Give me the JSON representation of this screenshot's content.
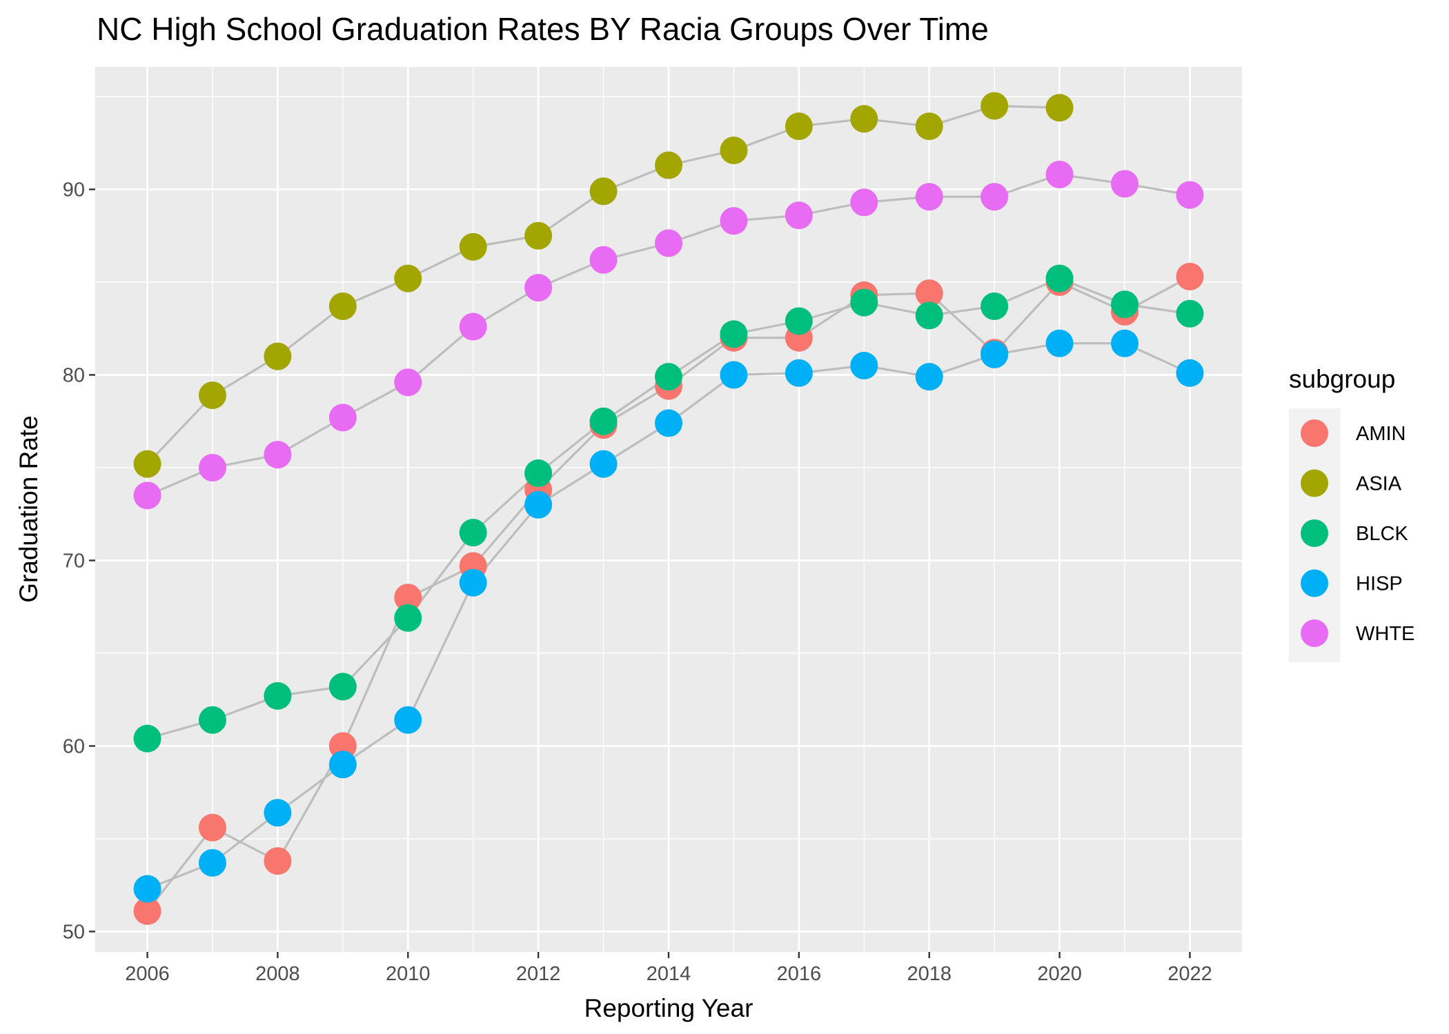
{
  "chart_data": {
    "type": "scatter",
    "title": "NC High School Graduation Rates BY Racia Groups Over Time",
    "xlabel": "Reporting Year",
    "ylabel": "Graduation Rate",
    "xlim": [
      2005.2,
      2022.8
    ],
    "ylim": [
      48.9,
      96.6
    ],
    "x_ticks": [
      2006,
      2008,
      2010,
      2012,
      2014,
      2016,
      2018,
      2020,
      2022
    ],
    "y_ticks": [
      50,
      60,
      70,
      80,
      90
    ],
    "grid": true,
    "line_color": "#bdbdbd",
    "panel_background": "#ebebeb",
    "legend": {
      "title": "subgroup",
      "placement": "right"
    },
    "series": [
      {
        "name": "AMIN",
        "color": "#F8766D",
        "points": [
          [
            2006,
            51.1
          ],
          [
            2007,
            55.6
          ],
          [
            2008,
            53.8
          ],
          [
            2009,
            60.0
          ],
          [
            2010,
            68.0
          ],
          [
            2011,
            69.7
          ],
          [
            2012,
            73.8
          ],
          [
            2013,
            77.3
          ],
          [
            2014,
            79.4
          ],
          [
            2015,
            82.0
          ],
          [
            2016,
            82.0
          ],
          [
            2017,
            84.3
          ],
          [
            2018,
            84.4
          ],
          [
            2019,
            81.2
          ],
          [
            2020,
            85.0
          ],
          [
            2021,
            83.4
          ],
          [
            2022,
            85.3
          ]
        ]
      },
      {
        "name": "ASIA",
        "color": "#A3A500",
        "points": [
          [
            2006,
            75.2
          ],
          [
            2007,
            78.9
          ],
          [
            2008,
            81.0
          ],
          [
            2009,
            83.7
          ],
          [
            2010,
            85.2
          ],
          [
            2011,
            86.9
          ],
          [
            2012,
            87.5
          ],
          [
            2013,
            89.9
          ],
          [
            2014,
            91.3
          ],
          [
            2015,
            92.1
          ],
          [
            2016,
            93.4
          ],
          [
            2017,
            93.8
          ],
          [
            2018,
            93.4
          ],
          [
            2019,
            94.5
          ],
          [
            2020,
            94.4
          ]
        ]
      },
      {
        "name": "BLCK",
        "color": "#00BF7D",
        "points": [
          [
            2006,
            60.4
          ],
          [
            2007,
            61.4
          ],
          [
            2008,
            62.7
          ],
          [
            2009,
            63.2
          ],
          [
            2010,
            66.9
          ],
          [
            2011,
            71.5
          ],
          [
            2012,
            74.7
          ],
          [
            2013,
            77.5
          ],
          [
            2014,
            79.9
          ],
          [
            2015,
            82.2
          ],
          [
            2016,
            82.9
          ],
          [
            2017,
            83.9
          ],
          [
            2018,
            83.2
          ],
          [
            2019,
            83.7
          ],
          [
            2020,
            85.2
          ],
          [
            2021,
            83.8
          ],
          [
            2022,
            83.3
          ]
        ]
      },
      {
        "name": "HISP",
        "color": "#00B0F6",
        "points": [
          [
            2006,
            52.3
          ],
          [
            2007,
            53.7
          ],
          [
            2008,
            56.4
          ],
          [
            2009,
            59.0
          ],
          [
            2010,
            61.4
          ],
          [
            2011,
            68.8
          ],
          [
            2012,
            73.0
          ],
          [
            2013,
            75.2
          ],
          [
            2014,
            77.4
          ],
          [
            2015,
            80.0
          ],
          [
            2016,
            80.1
          ],
          [
            2017,
            80.5
          ],
          [
            2018,
            79.9
          ],
          [
            2019,
            81.1
          ],
          [
            2020,
            81.7
          ],
          [
            2021,
            81.7
          ],
          [
            2022,
            80.1
          ]
        ]
      },
      {
        "name": "WHTE",
        "color": "#E76BF3",
        "points": [
          [
            2006,
            73.5
          ],
          [
            2007,
            75.0
          ],
          [
            2008,
            75.7
          ],
          [
            2009,
            77.7
          ],
          [
            2010,
            79.6
          ],
          [
            2011,
            82.6
          ],
          [
            2012,
            84.7
          ],
          [
            2013,
            86.2
          ],
          [
            2014,
            87.1
          ],
          [
            2015,
            88.3
          ],
          [
            2016,
            88.6
          ],
          [
            2017,
            89.3
          ],
          [
            2018,
            89.6
          ],
          [
            2019,
            89.6
          ],
          [
            2020,
            90.8
          ],
          [
            2021,
            90.3
          ],
          [
            2022,
            89.7
          ]
        ]
      }
    ]
  }
}
